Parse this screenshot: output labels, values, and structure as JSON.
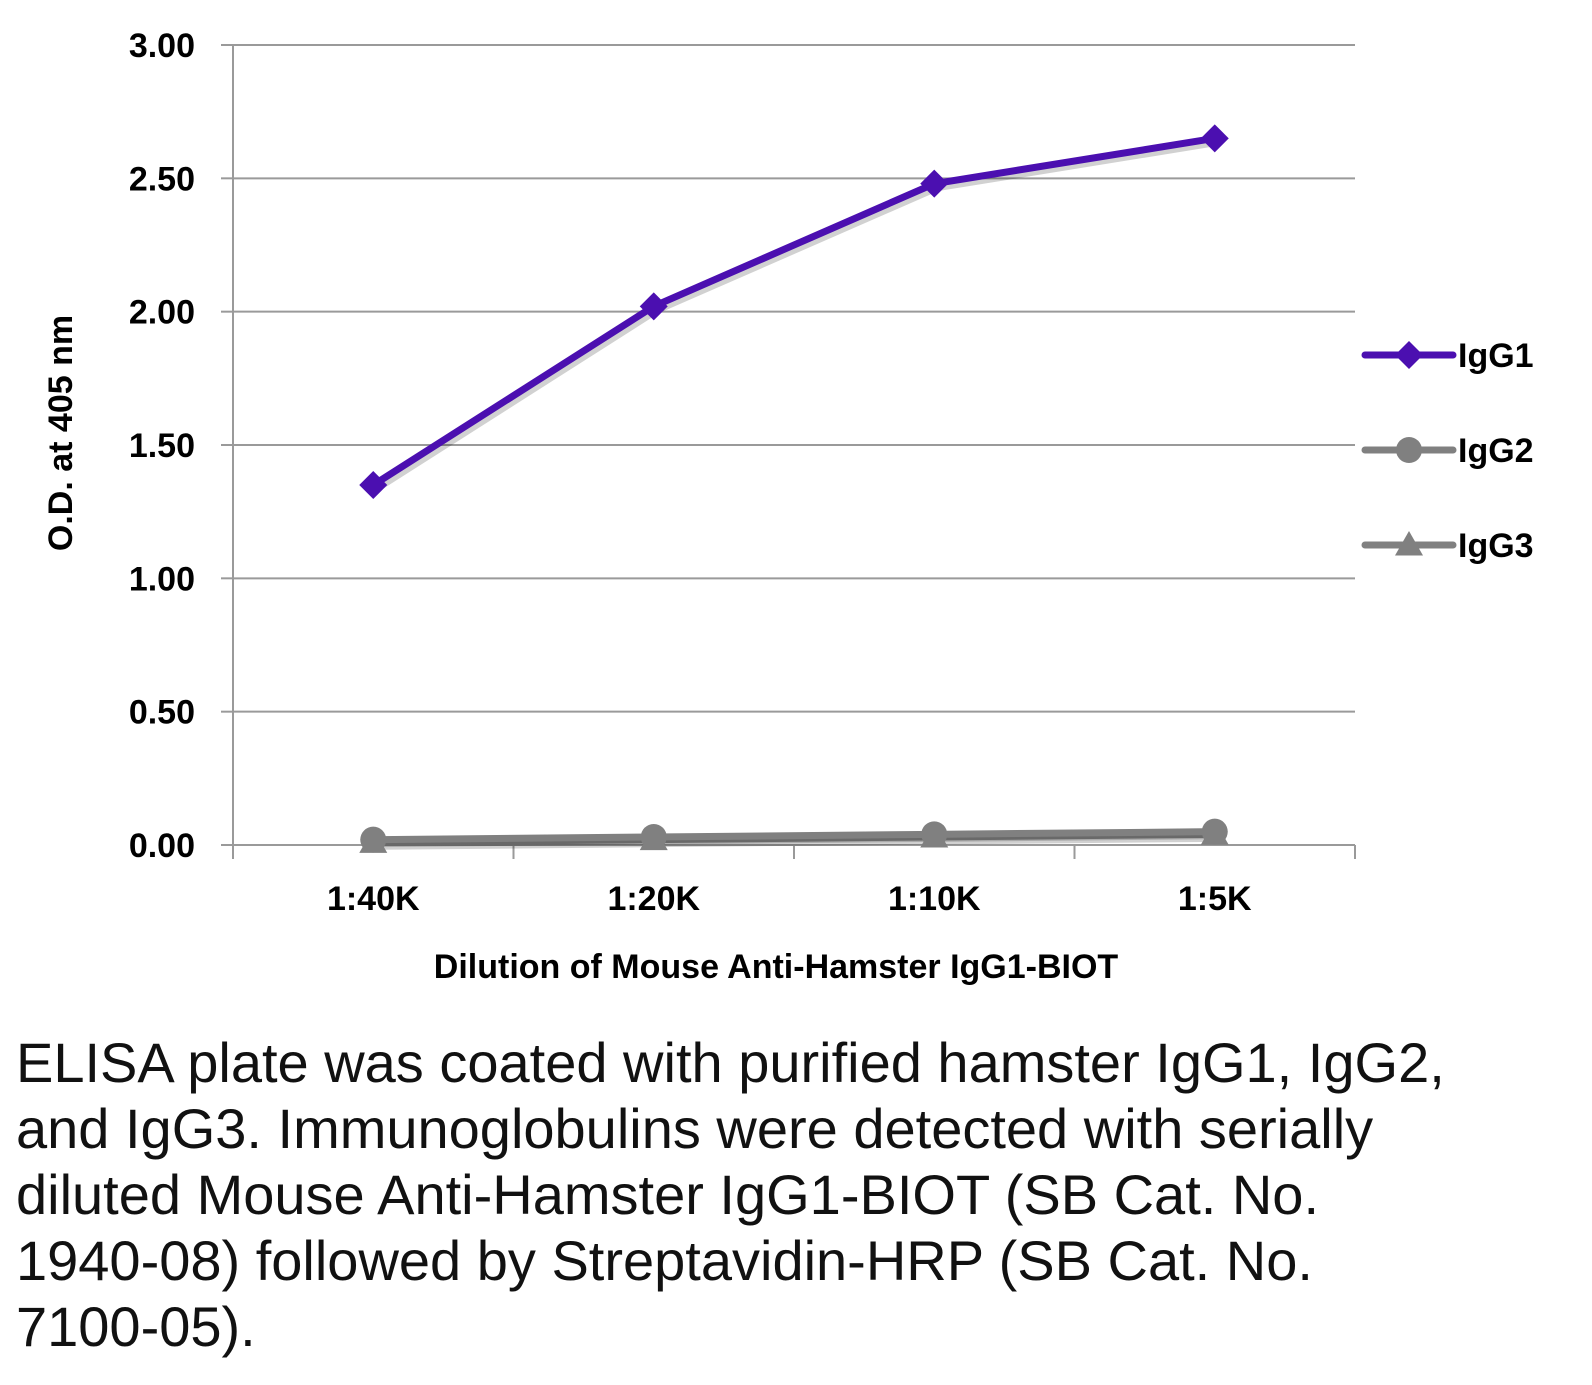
{
  "chart_data": {
    "type": "line",
    "title": "",
    "xlabel": "Dilution of Mouse Anti-Hamster IgG1-BIOT",
    "ylabel": "O.D. at 405 nm",
    "categories": [
      "1:40K",
      "1:20K",
      "1:10K",
      "1:5K"
    ],
    "ylim": [
      0,
      3
    ],
    "yticks": [
      "0.00",
      "0.50",
      "1.00",
      "1.50",
      "2.00",
      "2.50",
      "3.00"
    ],
    "grid": true,
    "legend_position": "right",
    "series": [
      {
        "name": "IgG1",
        "values": [
          1.35,
          2.02,
          2.48,
          2.65
        ],
        "color": "#4B0FB0",
        "marker": "diamond"
      },
      {
        "name": "IgG2",
        "values": [
          0.02,
          0.03,
          0.04,
          0.05
        ],
        "color": "#808080",
        "marker": "circle"
      },
      {
        "name": "IgG3",
        "values": [
          0.01,
          0.02,
          0.03,
          0.04
        ],
        "color": "#808080",
        "marker": "triangle"
      }
    ]
  },
  "caption": "ELISA plate was coated with purified hamster IgG1, IgG2, and IgG3.  Immunoglobulins were detected with serially diluted Mouse Anti-Hamster IgG1-BIOT (SB Cat. No. 1940-08) followed by Streptavidin-HRP (SB Cat. No. 7100-05)."
}
